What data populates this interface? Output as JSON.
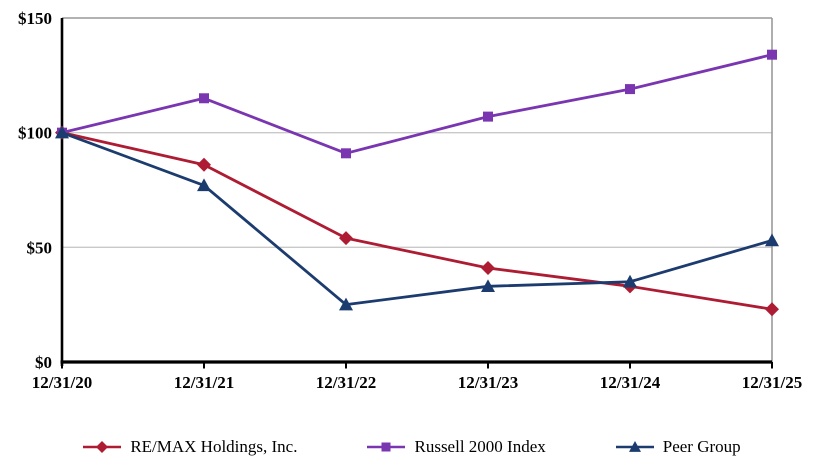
{
  "chart_data": {
    "type": "line",
    "title": "",
    "xlabel": "",
    "ylabel": "",
    "x_labels": [
      "12/31/20",
      "12/31/21",
      "12/31/22",
      "12/31/23",
      "12/31/24",
      "12/31/25"
    ],
    "y_ticks": [
      {
        "value": 0,
        "label": "$0"
      },
      {
        "value": 50,
        "label": "$50"
      },
      {
        "value": 100,
        "label": "$100"
      },
      {
        "value": 150,
        "label": "$150"
      }
    ],
    "ylim": [
      0,
      150
    ],
    "grid": "horizontal",
    "legend_position": "bottom",
    "series": [
      {
        "name": "RE/MAX Holdings, Inc.",
        "color": "#AE1C33",
        "marker": "diamond",
        "values": [
          100,
          86,
          54,
          41,
          33,
          23
        ]
      },
      {
        "name": "Russell 2000 Index",
        "color": "#7A36B1",
        "marker": "square",
        "values": [
          100,
          115,
          91,
          107,
          119,
          134
        ]
      },
      {
        "name": "Peer Group",
        "color": "#1C3B6E",
        "marker": "triangle",
        "values": [
          100,
          77,
          25,
          33,
          35,
          53
        ]
      }
    ],
    "colors": {
      "axis": "#000000",
      "plot_border": "#999999",
      "gridline": "#C9C9C9",
      "tick_label": "#000000"
    }
  }
}
